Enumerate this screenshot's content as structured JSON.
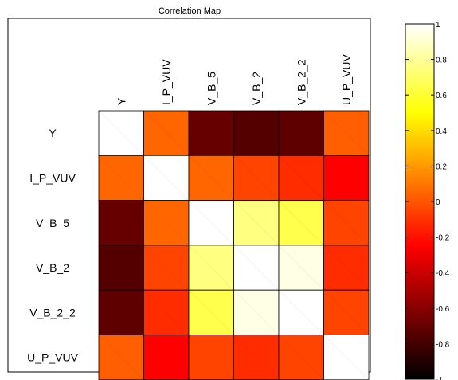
{
  "chart_data": {
    "type": "heatmap",
    "title": "Correlation Map",
    "rows": [
      "Y",
      "I_P_VUV",
      "V_B_5",
      "V_B_2",
      "V_B_2_2",
      "U_P_VUV"
    ],
    "columns": [
      "Y",
      "I_P_VUV",
      "V_B_5",
      "V_B_2",
      "V_B_2_2",
      "U_P_VUV"
    ],
    "values": [
      [
        1.0,
        0.05,
        -0.7,
        -0.75,
        -0.72,
        0.03
      ],
      [
        0.05,
        1.0,
        0.05,
        -0.05,
        -0.12,
        -0.25
      ],
      [
        -0.7,
        0.05,
        1.0,
        0.75,
        0.65,
        -0.05
      ],
      [
        -0.75,
        -0.05,
        0.75,
        1.0,
        0.95,
        -0.12
      ],
      [
        -0.72,
        -0.12,
        0.65,
        0.95,
        1.0,
        -0.05
      ],
      [
        0.03,
        -0.25,
        -0.05,
        -0.12,
        -0.05,
        1.0
      ]
    ],
    "colormap": "hot",
    "colorbar": {
      "range": [
        -1,
        1
      ],
      "ticks": [
        1,
        0.8,
        0.6,
        0.4,
        0.2,
        0,
        -0.2,
        -0.4,
        -0.6,
        -0.8,
        -1
      ],
      "tick_labels": [
        "1",
        "0.8",
        "0.6",
        "0.4",
        "0.2",
        "0",
        "-0.2",
        "-0.4",
        "-0.6",
        "-0.8",
        "-1"
      ]
    }
  }
}
